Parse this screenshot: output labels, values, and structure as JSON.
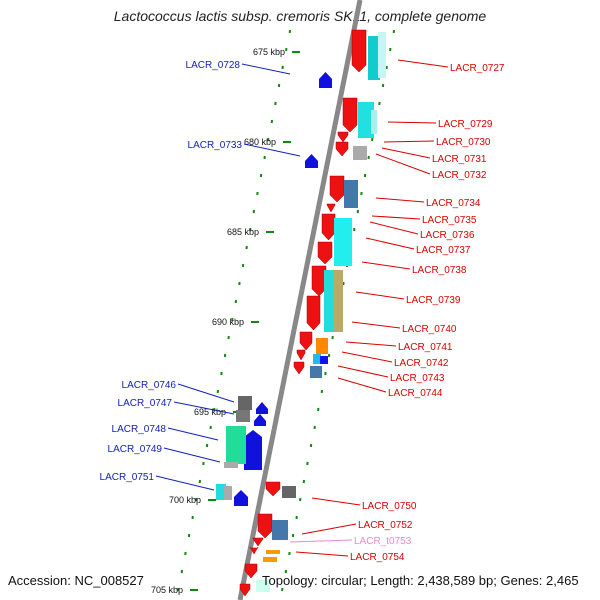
{
  "title": "Lactococcus lactis subsp. cremoris SK11, complete genome",
  "footer": {
    "accession": "Accession: NC_008527",
    "summary": "Topology: circular; Length: 2,438,589 bp; Genes: 2,465"
  },
  "colors": {
    "red": "#ee1111",
    "cyan": "#22e0e0",
    "blue": "#1111dd",
    "green_tick": "#118811",
    "backbone": "#888888",
    "right_label": "#dd0000",
    "left_label": "#1122bb",
    "trna_label": "#ee88cc"
  },
  "ticks": [
    "675 kbp",
    "680 kbp",
    "685 kbp",
    "690 kbp",
    "695 kbp",
    "700 kbp",
    "705 kbp"
  ],
  "labels_left": [
    "LACR_0728",
    "LACR_0733",
    "LACR_0746",
    "LACR_0747",
    "LACR_0748",
    "LACR_0749",
    "LACR_0751"
  ],
  "labels_right": [
    "LACR_0727",
    "LACR_0729",
    "LACR_0730",
    "LACR_0731",
    "LACR_0732",
    "LACR_0734",
    "LACR_0735",
    "LACR_0736",
    "LACR_0737",
    "LACR_0738",
    "LACR_0739",
    "LACR_0740",
    "LACR_0741",
    "LACR_0742",
    "LACR_0743",
    "LACR_0744",
    "LACR_0750",
    "LACR_0752",
    "LACR_t0753",
    "LACR_0754"
  ]
}
